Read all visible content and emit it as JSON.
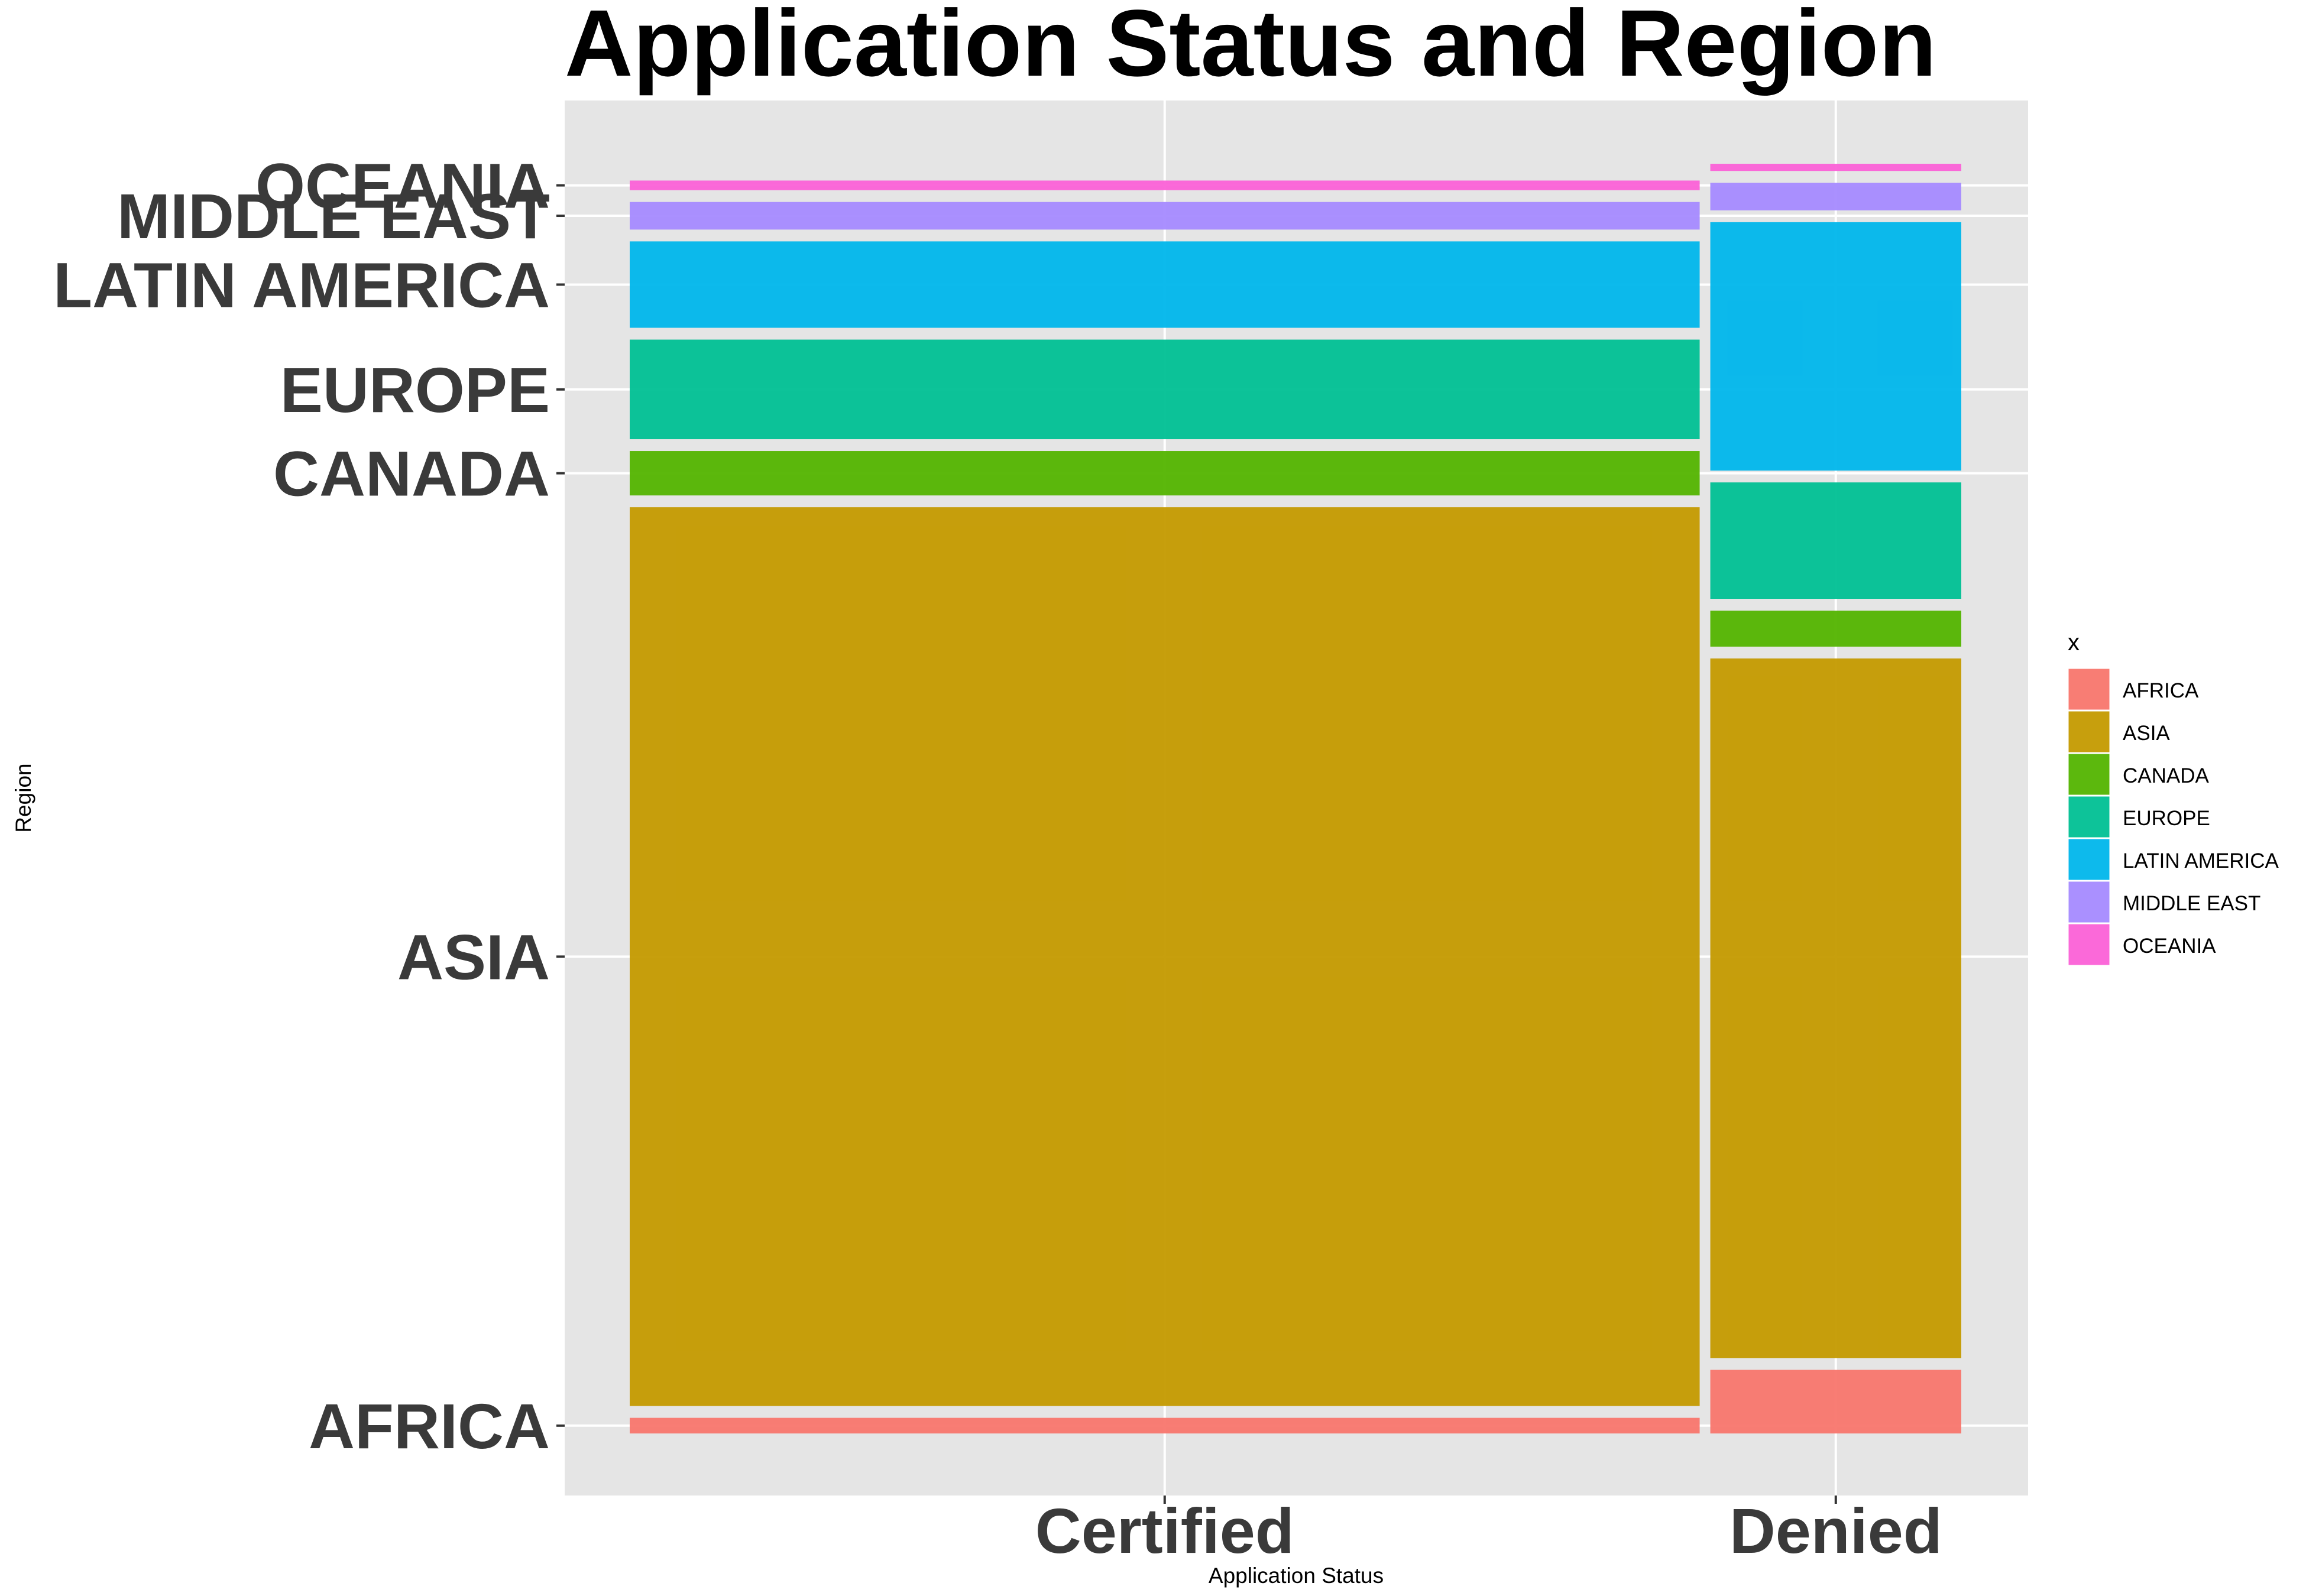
{
  "chart_data": {
    "type": "mosaic",
    "title": "Application Status and Region",
    "xlabel": "Application Status",
    "ylabel": "Region",
    "x_categories": [
      "Certified",
      "Denied"
    ],
    "column_share": [
      0.81,
      0.19
    ],
    "y_categories": [
      "AFRICA",
      "ASIA",
      "CANADA",
      "EUROPE",
      "LATIN AMERICA",
      "MIDDLE EAST",
      "OCEANIA"
    ],
    "cells": [
      {
        "status": "Certified",
        "proportions": [
          0.013,
          0.749,
          0.037,
          0.083,
          0.072,
          0.023,
          0.008
        ]
      },
      {
        "status": "Denied",
        "proportions": [
          0.053,
          0.583,
          0.03,
          0.097,
          0.207,
          0.023,
          0.006
        ]
      }
    ],
    "legend": {
      "title": "x",
      "position": "right",
      "items": [
        {
          "label": "AFRICA",
          "color": "#F8766D"
        },
        {
          "label": "ASIA",
          "color": "#C49A00"
        },
        {
          "label": "CANADA",
          "color": "#53B400"
        },
        {
          "label": "EUROPE",
          "color": "#00C094"
        },
        {
          "label": "LATIN AMERICA",
          "color": "#00B6EB"
        },
        {
          "label": "MIDDLE EAST",
          "color": "#A58AFF"
        },
        {
          "label": "OCEANIA",
          "color": "#FB61D7"
        }
      ]
    },
    "panel_background": "#E5E5E5",
    "grid": true
  }
}
